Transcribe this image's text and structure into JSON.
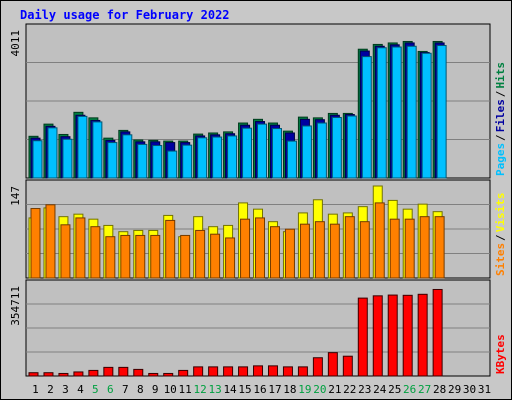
{
  "chart_data": [
    {
      "type": "bar",
      "title": "Daily usage for February 2022",
      "panel": "hits-files-pages",
      "ymax_label": "4011",
      "categories": [
        "1",
        "2",
        "3",
        "4",
        "5",
        "6",
        "7",
        "8",
        "9",
        "10",
        "11",
        "12",
        "13",
        "14",
        "15",
        "16",
        "17",
        "18",
        "19",
        "20",
        "21",
        "22",
        "23",
        "24",
        "25",
        "26",
        "27",
        "28",
        "29",
        "30",
        "31"
      ],
      "legend": [
        "Pages",
        "Files",
        "Hits"
      ],
      "series": [
        {
          "name": "Hits",
          "color": "#008040",
          "values": [
            1130,
            1460,
            1180,
            1780,
            1630,
            1080,
            1290,
            1030,
            1020,
            1000,
            1000,
            1190,
            1220,
            1250,
            1490,
            1590,
            1490,
            1270,
            1650,
            1630,
            1750,
            1750,
            3490,
            3620,
            3660,
            3700,
            3430,
            3700,
            null,
            null,
            null
          ]
        },
        {
          "name": "Files",
          "color": "#0000a0",
          "values": [
            1080,
            1400,
            1120,
            1700,
            1560,
            1020,
            1250,
            980,
            980,
            960,
            960,
            1140,
            1170,
            1200,
            1430,
            1530,
            1430,
            1220,
            1590,
            1580,
            1700,
            1720,
            3440,
            3570,
            3610,
            3660,
            3400,
            3660,
            null,
            null,
            null
          ]
        },
        {
          "name": "Pages",
          "color": "#00c0ff",
          "values": [
            1010,
            1360,
            1050,
            1670,
            1520,
            960,
            1170,
            910,
            880,
            730,
            890,
            1090,
            1110,
            1140,
            1350,
            1460,
            1340,
            1000,
            1410,
            1490,
            1640,
            1680,
            3290,
            3530,
            3550,
            3570,
            3380,
            3590,
            null,
            null,
            null
          ]
        }
      ]
    },
    {
      "type": "bar",
      "panel": "visits-sites",
      "ymax_label": "147",
      "categories": [
        "1",
        "2",
        "3",
        "4",
        "5",
        "6",
        "7",
        "8",
        "9",
        "10",
        "11",
        "12",
        "13",
        "14",
        "15",
        "16",
        "17",
        "18",
        "19",
        "20",
        "21",
        "22",
        "23",
        "24",
        "25",
        "26",
        "27",
        "28",
        "29",
        "30",
        "31"
      ],
      "legend": [
        "Sites",
        "Visits"
      ],
      "series": [
        {
          "name": "Visits",
          "color": "#ffff00",
          "values": [
            96,
            112,
            98,
            102,
            94,
            84,
            74,
            76,
            76,
            100,
            66,
            98,
            82,
            84,
            120,
            110,
            90,
            74,
            104,
            125,
            102,
            104,
            114,
            147,
            124,
            110,
            118,
            106,
            null,
            null,
            null
          ]
        },
        {
          "name": "Sites",
          "color": "#ff8000",
          "values": [
            111,
            117,
            85,
            96,
            82,
            66,
            68,
            68,
            68,
            92,
            68,
            76,
            70,
            64,
            94,
            96,
            82,
            78,
            86,
            90,
            86,
            98,
            90,
            120,
            94,
            94,
            98,
            98,
            null,
            null,
            null
          ]
        }
      ]
    },
    {
      "type": "bar",
      "panel": "kbytes",
      "ymax_label": "354711",
      "categories": [
        "1",
        "2",
        "3",
        "4",
        "5",
        "6",
        "7",
        "8",
        "9",
        "10",
        "11",
        "12",
        "13",
        "14",
        "15",
        "16",
        "17",
        "18",
        "19",
        "20",
        "21",
        "22",
        "23",
        "24",
        "25",
        "26",
        "27",
        "28",
        "29",
        "30",
        "31"
      ],
      "legend": [
        "KBytes"
      ],
      "series": [
        {
          "name": "KBytes",
          "color": "#ff0000",
          "values": [
            13000,
            13000,
            10000,
            16000,
            22000,
            34000,
            34000,
            26000,
            10000,
            10000,
            22000,
            36000,
            36000,
            36000,
            36000,
            40000,
            40000,
            36000,
            36000,
            72000,
            92000,
            78000,
            307000,
            316000,
            319000,
            318000,
            322000,
            341000,
            null,
            null,
            null
          ]
        }
      ]
    },
    {
      "type": "axis",
      "x_labels": [
        "1",
        "2",
        "3",
        "4",
        "5",
        "6",
        "7",
        "8",
        "9",
        "10",
        "11",
        "12",
        "13",
        "14",
        "15",
        "16",
        "17",
        "18",
        "19",
        "20",
        "21",
        "22",
        "23",
        "24",
        "25",
        "26",
        "27",
        "28",
        "29",
        "30",
        "31"
      ],
      "weekend_days": [
        5,
        6,
        12,
        13,
        19,
        20,
        26,
        27
      ],
      "weekday_color": "#000000",
      "weekend_color": "#00a040"
    }
  ],
  "colors": {
    "title": "#0000ff",
    "panel_bg": "#c0c0c0",
    "outer_bg": "#c8c8c8",
    "gridline": "#808080"
  }
}
